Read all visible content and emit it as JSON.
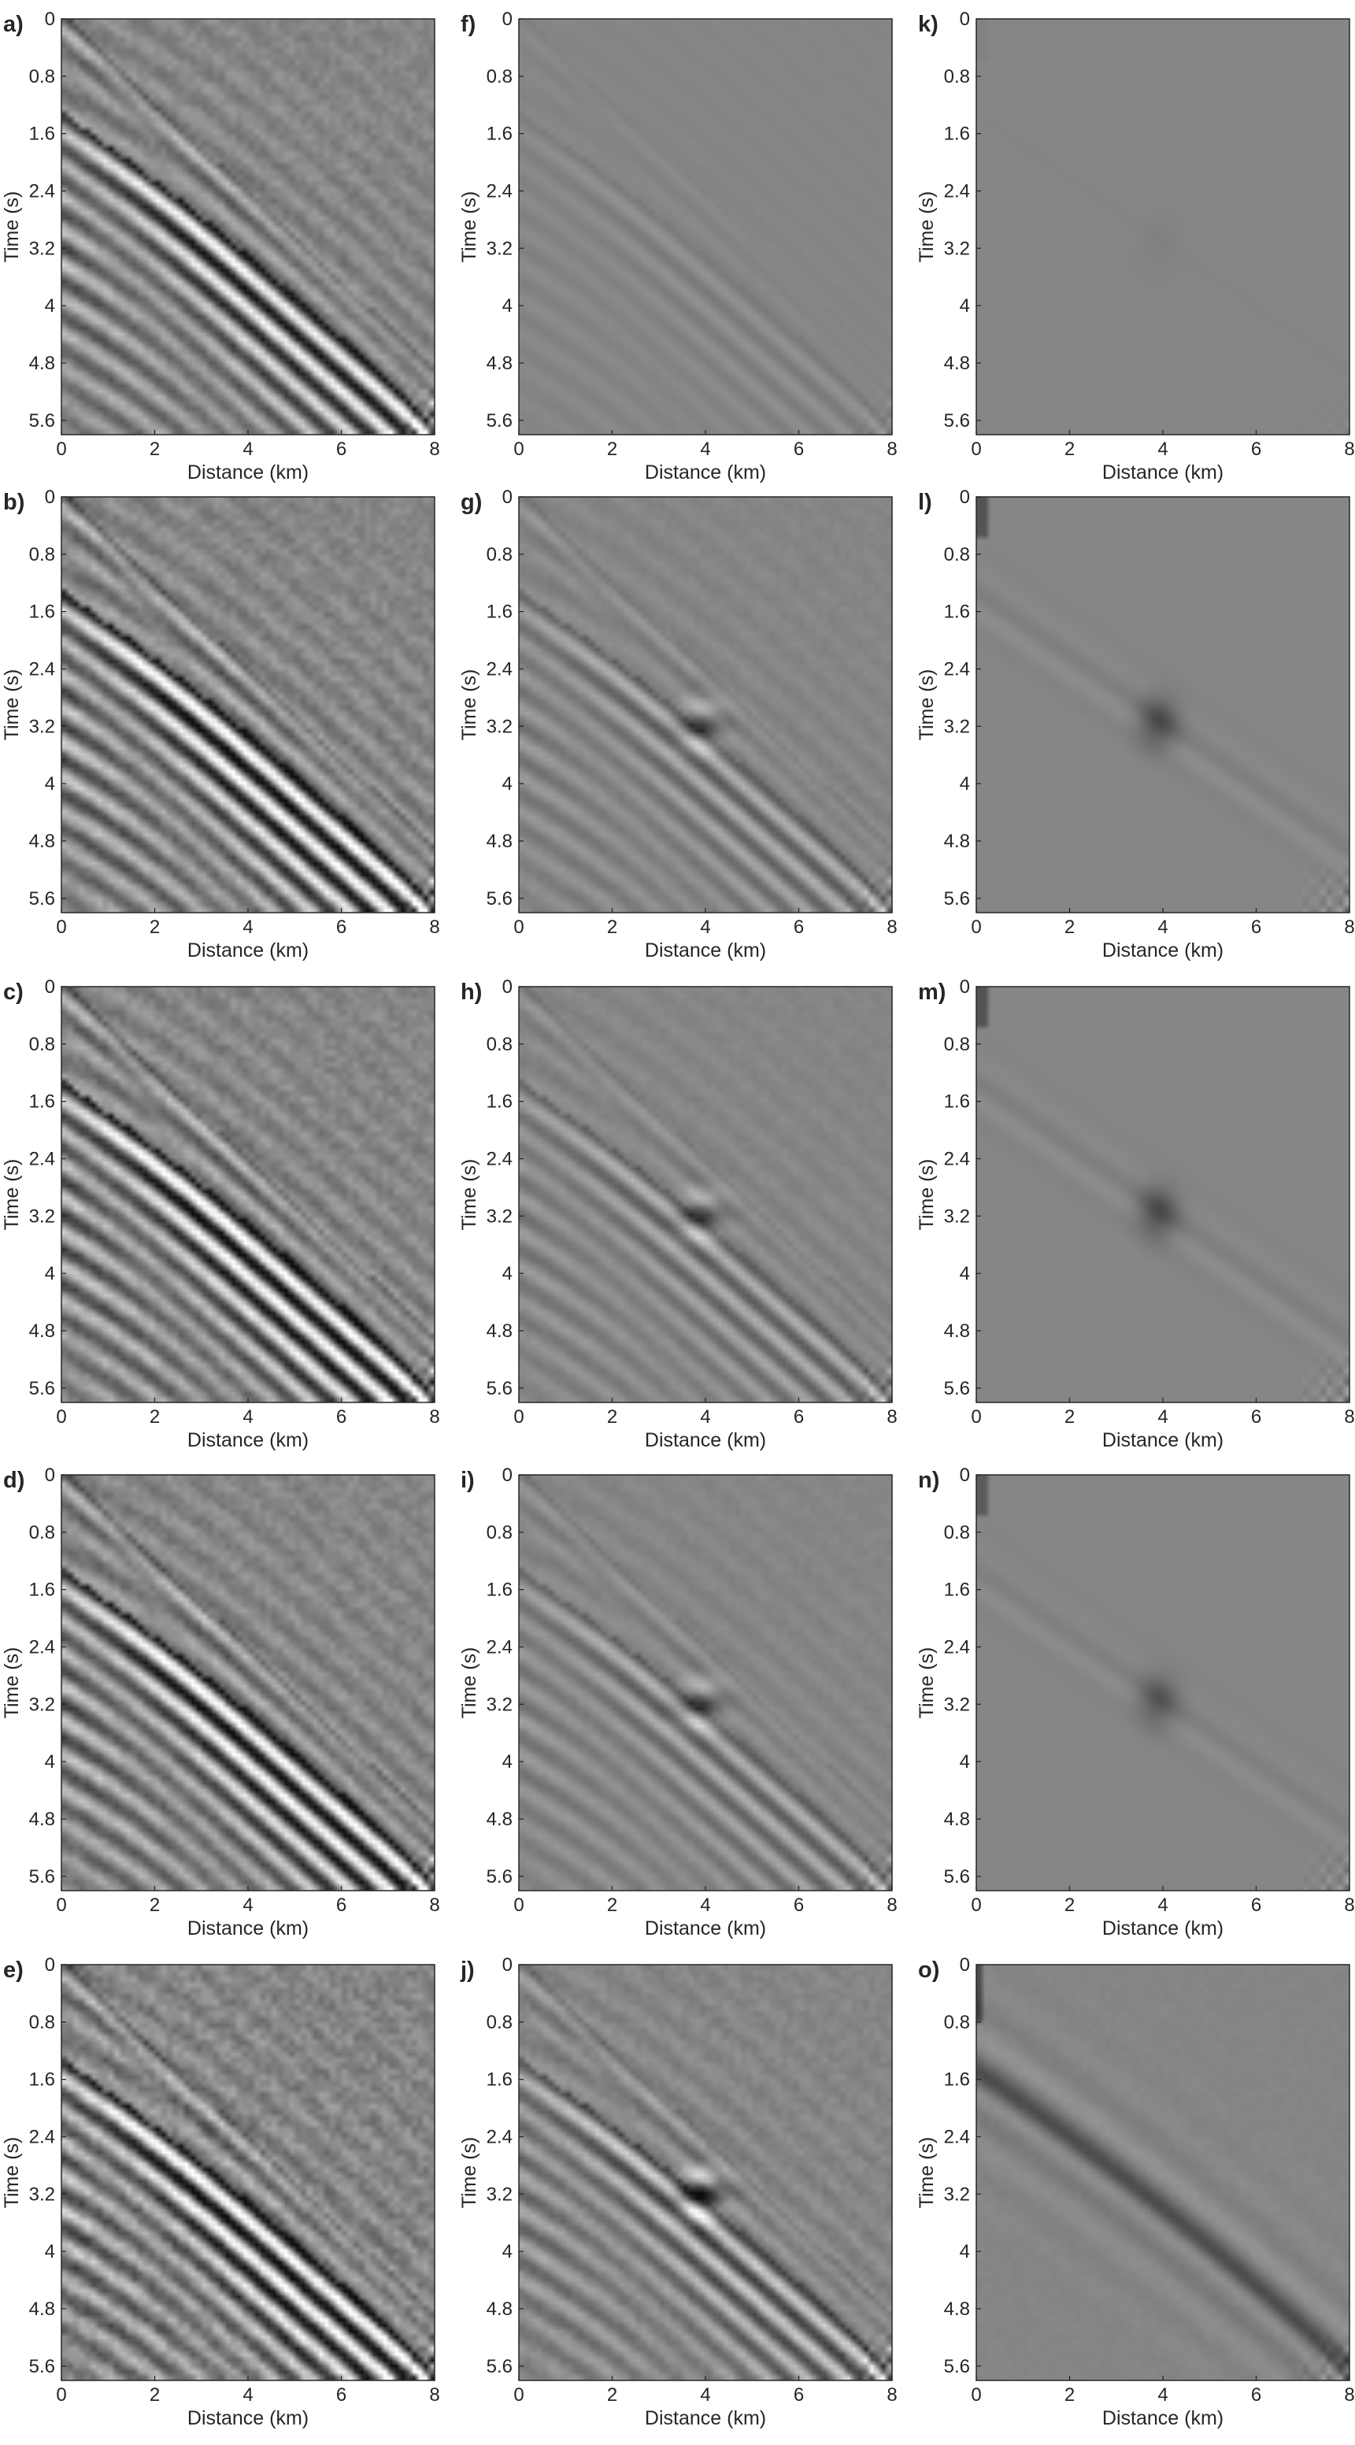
{
  "chart_data": {
    "type": "heatmap",
    "colormap": "gray",
    "background_gray": "#868686",
    "grid": false,
    "xlabel": "Distance (km)",
    "ylabel": "Time (s)",
    "xlim": [
      0,
      8
    ],
    "ylim": [
      0,
      5.8
    ],
    "y_reversed": true,
    "xticks": [
      "0",
      "2",
      "4",
      "6",
      "8"
    ],
    "yticks": [
      "0",
      "0.8",
      "1.6",
      "2.4",
      "3.2",
      "4",
      "4.8",
      "5.6"
    ],
    "panels": [
      {
        "label": "a)",
        "amplitude": 0.85,
        "noise": 0.6,
        "pattern": "strong"
      },
      {
        "label": "b)",
        "amplitude": 1.0,
        "noise": 0.6,
        "pattern": "strong"
      },
      {
        "label": "c)",
        "amplitude": 1.0,
        "noise": 0.6,
        "pattern": "strong"
      },
      {
        "label": "d)",
        "amplitude": 0.95,
        "noise": 0.6,
        "pattern": "strong"
      },
      {
        "label": "e)",
        "amplitude": 1.0,
        "noise": 0.9,
        "pattern": "strong"
      },
      {
        "label": "f)",
        "amplitude": 0.15,
        "noise": 0.2,
        "pattern": "residual"
      },
      {
        "label": "g)",
        "amplitude": 0.45,
        "noise": 0.4,
        "pattern": "medium"
      },
      {
        "label": "h)",
        "amplitude": 0.45,
        "noise": 0.4,
        "pattern": "medium"
      },
      {
        "label": "i)",
        "amplitude": 0.45,
        "noise": 0.4,
        "pattern": "medium"
      },
      {
        "label": "j)",
        "amplitude": 0.75,
        "noise": 0.5,
        "pattern": "medium"
      },
      {
        "label": "k)",
        "amplitude": 0.05,
        "noise": 0.0,
        "pattern": "faint"
      },
      {
        "label": "l)",
        "amplitude": 0.3,
        "noise": 0.0,
        "pattern": "blob"
      },
      {
        "label": "m)",
        "amplitude": 0.3,
        "noise": 0.0,
        "pattern": "blob"
      },
      {
        "label": "n)",
        "amplitude": 0.25,
        "noise": 0.0,
        "pattern": "blob"
      },
      {
        "label": "o)",
        "amplitude": 0.35,
        "noise": 0.3,
        "pattern": "smear"
      }
    ]
  }
}
